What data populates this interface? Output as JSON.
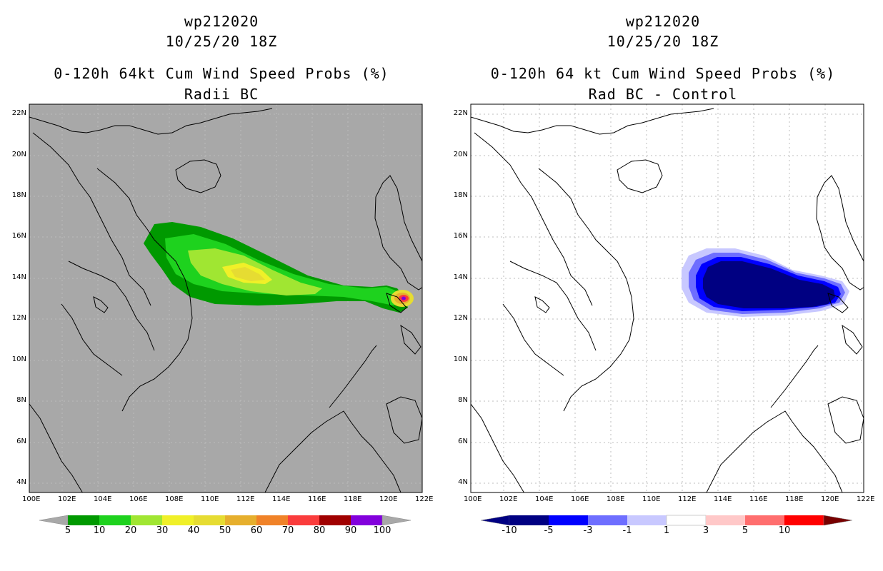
{
  "left": {
    "storm": "wp212020",
    "time": "10/25/20 18Z",
    "title": "0-120h 64kt Cum Wind Speed Probs (%)",
    "subtitle": "Radii BC",
    "background": "#a8a8a8",
    "colorbar": {
      "labels": [
        "5",
        "10",
        "20",
        "30",
        "40",
        "50",
        "60",
        "70",
        "80",
        "90",
        "100"
      ],
      "colors": [
        "#009900",
        "#1ed21e",
        "#a0e632",
        "#f0f028",
        "#e6dc32",
        "#e6af2d",
        "#f08228",
        "#fa3c3c",
        "#a00000",
        "#8200dc"
      ],
      "end_color": "#a8a8a8"
    }
  },
  "right": {
    "storm": "wp212020",
    "time": "10/25/20 18Z",
    "title": "0-120h 64 kt Cum Wind Speed Probs (%)",
    "subtitle": "Rad BC - Control",
    "background": "#ffffff",
    "colorbar": {
      "labels": [
        "-10",
        "-5",
        "-3",
        "-1",
        "1",
        "3",
        "5",
        "10"
      ],
      "colors": [
        "#000082",
        "#0000ff",
        "#6e6eff",
        "#c8c8ff",
        "#ffffff",
        "#ffc8c8",
        "#ff6e6e",
        "#ff0000"
      ],
      "left_end": "#000082",
      "right_end": "#780000"
    }
  },
  "axes": {
    "lat_labels": [
      "22N",
      "20N",
      "18N",
      "16N",
      "14N",
      "12N",
      "10N",
      "8N",
      "6N",
      "4N"
    ],
    "lon_labels": [
      "100E",
      "102E",
      "104E",
      "106E",
      "108E",
      "110E",
      "112E",
      "114E",
      "116E",
      "118E",
      "120E",
      "122E"
    ]
  }
}
